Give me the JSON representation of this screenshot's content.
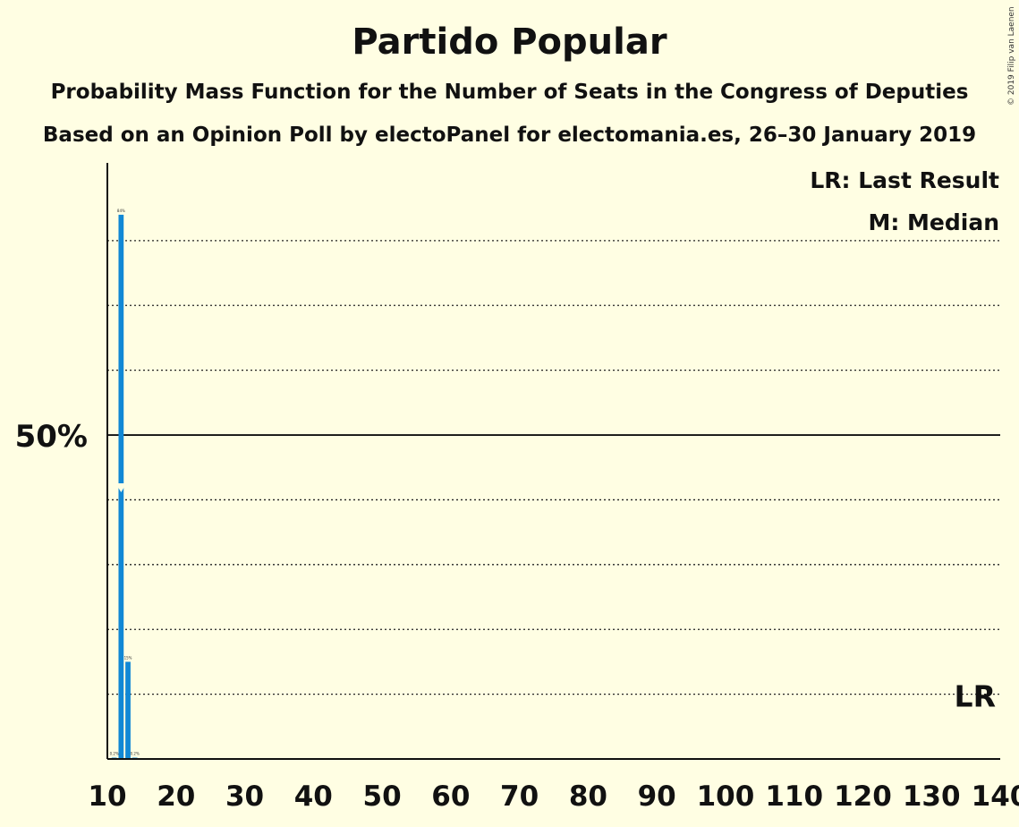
{
  "chart_data": {
    "type": "bar",
    "title": "Partido Popular",
    "subtitle": "Probability Mass Function for the Number of Seats in the Congress of Deputies",
    "subtitle2": "Based on an Opinion Poll by electoPanel for electomania.es, 26–30 January 2019",
    "copyright": "© 2019 Filip van Laenen",
    "xlabel": "",
    "ylabel": "",
    "xlim": [
      10,
      140
    ],
    "ylim": [
      0,
      92
    ],
    "x_ticks": [
      10,
      20,
      30,
      40,
      50,
      60,
      70,
      80,
      90,
      100,
      110,
      120,
      130,
      140
    ],
    "y_tick_label": "50%",
    "y_major": 50,
    "y_gridlines": [
      10,
      20,
      30,
      40,
      60,
      70,
      80
    ],
    "bars": [
      {
        "seats": 11,
        "value": 0.2,
        "label": "0.2%"
      },
      {
        "seats": 12,
        "value": 84,
        "label": "84%"
      },
      {
        "seats": 13,
        "value": 15,
        "label": "15%"
      },
      {
        "seats": 14,
        "value": 0.2,
        "label": "0.2%"
      }
    ],
    "median_seats": 12,
    "last_result_label": "LR",
    "last_result_y": 10,
    "legend": [
      "LR: Last Result",
      "M: Median"
    ],
    "legend_position": "top-right",
    "bar_color": "#1188D5",
    "background": "#FFFEE3"
  }
}
